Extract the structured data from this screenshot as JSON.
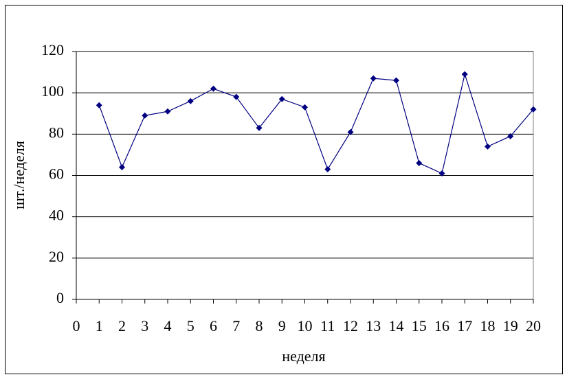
{
  "chart_data": {
    "type": "line",
    "x_label": "неделя",
    "y_label": "шт./неделя",
    "x": [
      1,
      2,
      3,
      4,
      5,
      6,
      7,
      8,
      9,
      10,
      11,
      12,
      13,
      14,
      15,
      16,
      17,
      18,
      19,
      20
    ],
    "series": [
      {
        "color": "#000080",
        "values": [
          94,
          64,
          89,
          91,
          96,
          102,
          98,
          83,
          97,
          93,
          63,
          81,
          107,
          106,
          66,
          61,
          109,
          74,
          79,
          92
        ]
      }
    ],
    "xlim": [
      0,
      20
    ],
    "xticks": [
      0,
      1,
      2,
      3,
      4,
      5,
      6,
      7,
      8,
      9,
      10,
      11,
      12,
      13,
      14,
      15,
      16,
      17,
      18,
      19,
      20
    ],
    "ylim": [
      0,
      120
    ],
    "yticks": [
      0,
      20,
      40,
      60,
      80,
      100,
      120
    ],
    "grid": true
  }
}
